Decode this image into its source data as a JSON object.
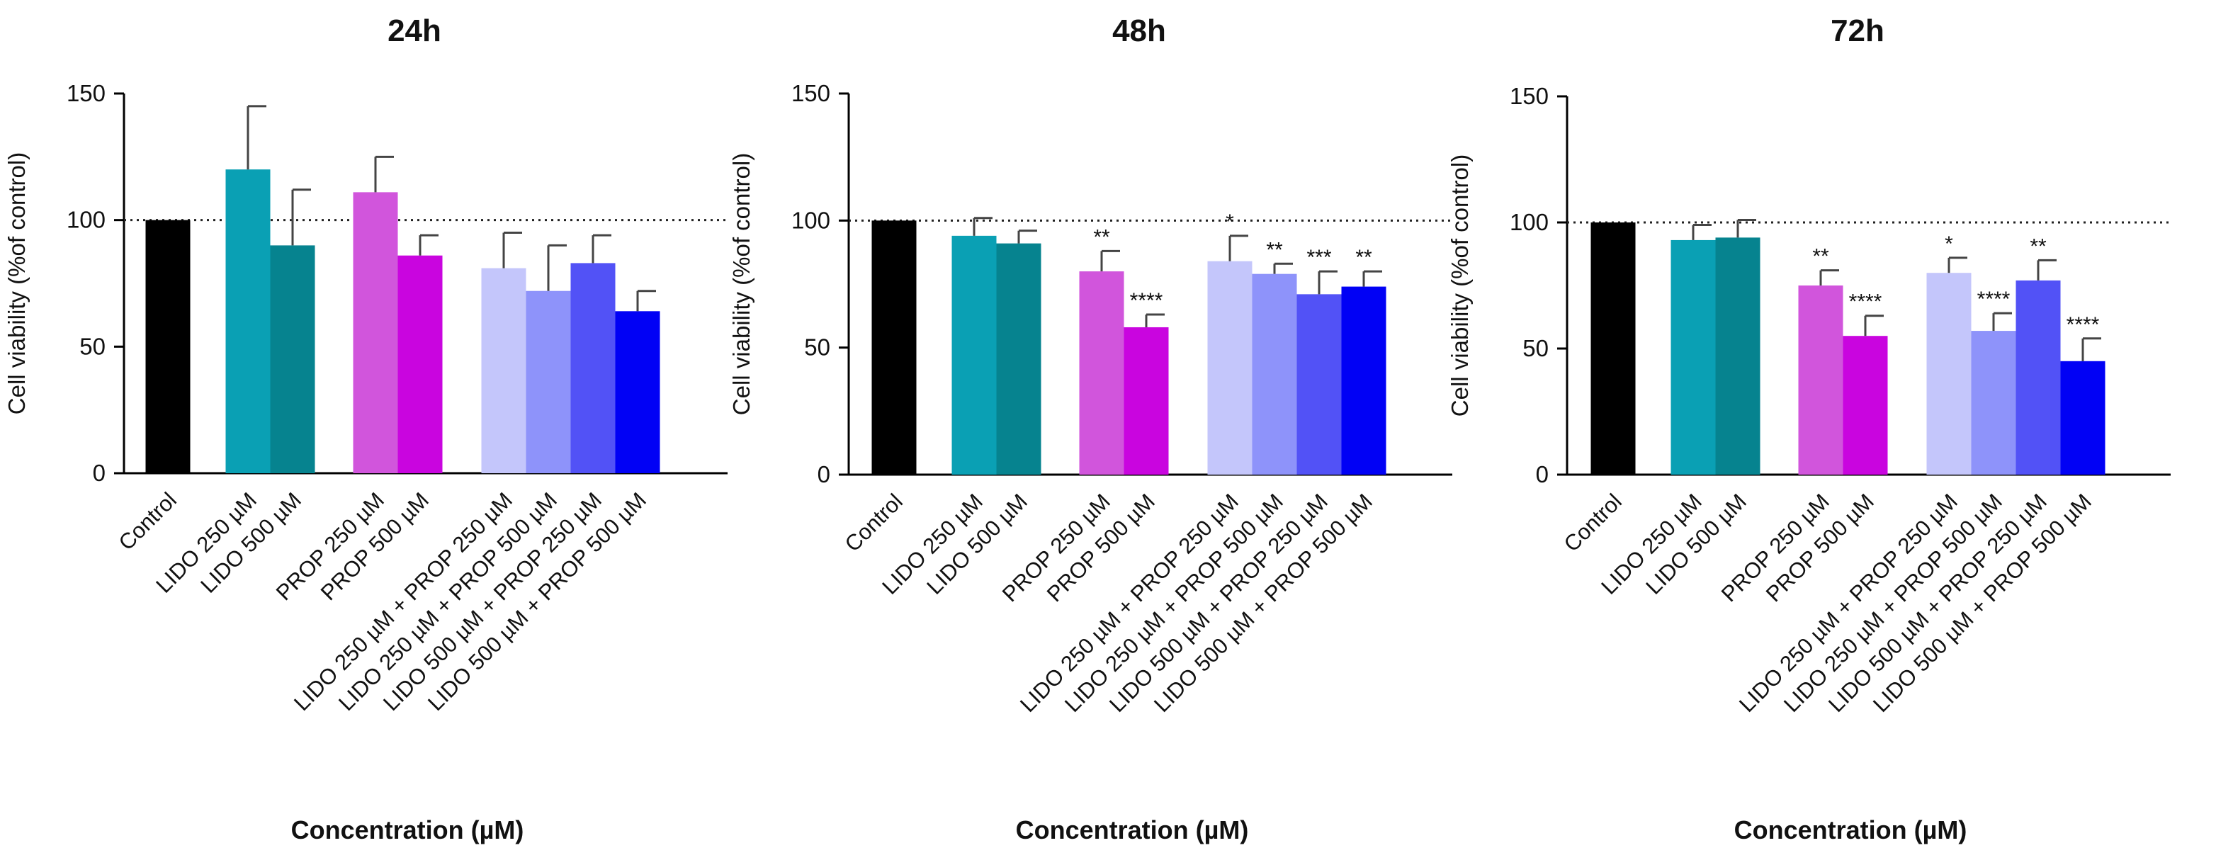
{
  "chart_data": [
    {
      "type": "bar",
      "title": "24h",
      "xlabel": "Concentration (µM)",
      "ylabel": "Cell viability (%of control)",
      "ylim": [
        0,
        150
      ],
      "yticks": [
        0,
        50,
        100,
        150
      ],
      "reference_line": 100,
      "categories": [
        "Control",
        "LIDO 250 µM",
        "LIDO 500 µM",
        "PROP 250 µM",
        "PROP 500 µM",
        "LIDO 250 µM + PROP 250 µM",
        "LIDO 250 µM + PROP 500 µM",
        "LIDO 500 µM + PROP 250 µM",
        "LIDO 500 µM + PROP 500 µM"
      ],
      "values": [
        100,
        120,
        90,
        111,
        86,
        81,
        72,
        83,
        64
      ],
      "errors": [
        0,
        25,
        22,
        14,
        8,
        14,
        18,
        11,
        8
      ],
      "significance": [
        "",
        "",
        "",
        "",
        "",
        "",
        "",
        "",
        ""
      ]
    },
    {
      "type": "bar",
      "title": "48h",
      "xlabel": "Concentration (µM)",
      "ylabel": "Cell viability (%of control)",
      "ylim": [
        0,
        150
      ],
      "yticks": [
        0,
        50,
        100,
        150
      ],
      "reference_line": 100,
      "categories": [
        "Control",
        "LIDO 250 µM",
        "LIDO 500 µM",
        "PROP 250 µM",
        "PROP 500 µM",
        "LIDO 250 µM + PROP 250 µM",
        "LIDO 250 µM + PROP 500 µM",
        "LIDO 500 µM + PROP 250 µM",
        "LIDO 500 µM + PROP 500 µM"
      ],
      "values": [
        100,
        94,
        91,
        80,
        58,
        84,
        79,
        71,
        74
      ],
      "errors": [
        0,
        7,
        5,
        8,
        5,
        10,
        4,
        9,
        6
      ],
      "significance": [
        "",
        "",
        "",
        "**",
        "****",
        "*",
        "**",
        "***",
        "**"
      ]
    },
    {
      "type": "bar",
      "title": "72h",
      "xlabel": "Concentration (µM)",
      "ylabel": "Cell viability (%of control)",
      "ylim": [
        0,
        150
      ],
      "yticks": [
        0,
        50,
        100,
        150
      ],
      "reference_line": 100,
      "categories": [
        "Control",
        "LIDO 250 µM",
        "LIDO 500 µM",
        "PROP 250 µM",
        "PROP 500 µM",
        "LIDO 250 µM + PROP 250 µM",
        "LIDO 250 µM + PROP 500 µM",
        "LIDO 500 µM + PROP 250 µM",
        "LIDO 500 µM + PROP 500 µM"
      ],
      "values": [
        100,
        93,
        94,
        75,
        55,
        80,
        57,
        77,
        45
      ],
      "errors": [
        0,
        6,
        7,
        6,
        8,
        6,
        7,
        8,
        9
      ],
      "significance": [
        "",
        "",
        "",
        "**",
        "****",
        "*",
        "****",
        "**",
        "****"
      ]
    }
  ],
  "colors": [
    "#000000",
    "#0aa0b4",
    "#06838f",
    "#d155dc",
    "#c905df",
    "#c4c6fb",
    "#8e93fa",
    "#5252f6",
    "#0101f5"
  ]
}
